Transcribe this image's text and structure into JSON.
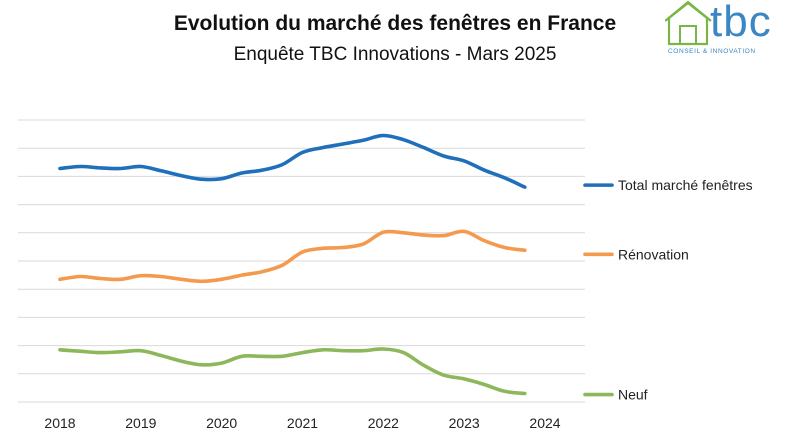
{
  "colors": {
    "total": "#1f6fba",
    "renovation": "#f39a4e",
    "neuf": "#8cb75a",
    "grid": "#d9d9d9",
    "logo": "#3a87c4",
    "logo_house": "#7ab547"
  },
  "logo": {
    "text": "tbc",
    "tagline": "CONSEIL & INNOVATION"
  },
  "chart_data": {
    "type": "line",
    "title": "Evolution du marché des fenêtres en France",
    "subtitle": "Enquête TBC Innovations - Mars 2025",
    "x": [
      2018,
      2019,
      2020,
      2021,
      2022,
      2023,
      2024
    ],
    "tick_labels": [
      "2018",
      "2019",
      "2020",
      "2021",
      "2022",
      "2023",
      "2024"
    ],
    "xlabel": "",
    "ylabel": "",
    "ylim": [
      0,
      10
    ],
    "grid": true,
    "y_axis_labels": false,
    "legend": "right",
    "series": [
      {
        "name": "Total  marché fenêtres",
        "color_key": "total",
        "points": [
          [
            2018.0,
            8.28
          ],
          [
            2018.25,
            8.35
          ],
          [
            2018.5,
            8.3
          ],
          [
            2018.75,
            8.28
          ],
          [
            2019.0,
            8.35
          ],
          [
            2019.25,
            8.2
          ],
          [
            2019.5,
            8.03
          ],
          [
            2019.75,
            7.9
          ],
          [
            2020.0,
            7.92
          ],
          [
            2020.25,
            8.12
          ],
          [
            2020.5,
            8.22
          ],
          [
            2020.75,
            8.42
          ],
          [
            2021.0,
            8.85
          ],
          [
            2021.25,
            9.02
          ],
          [
            2021.5,
            9.15
          ],
          [
            2021.75,
            9.28
          ],
          [
            2022.0,
            9.45
          ],
          [
            2022.25,
            9.3
          ],
          [
            2022.5,
            9.02
          ],
          [
            2022.75,
            8.72
          ],
          [
            2023.0,
            8.55
          ],
          [
            2023.25,
            8.22
          ],
          [
            2023.5,
            7.95
          ],
          [
            2023.75,
            7.62
          ]
        ]
      },
      {
        "name": "Rénovation",
        "color_key": "renovation",
        "points": [
          [
            2018.0,
            4.35
          ],
          [
            2018.25,
            4.45
          ],
          [
            2018.5,
            4.38
          ],
          [
            2018.75,
            4.35
          ],
          [
            2019.0,
            4.48
          ],
          [
            2019.25,
            4.45
          ],
          [
            2019.5,
            4.35
          ],
          [
            2019.75,
            4.28
          ],
          [
            2020.0,
            4.35
          ],
          [
            2020.25,
            4.5
          ],
          [
            2020.5,
            4.62
          ],
          [
            2020.75,
            4.85
          ],
          [
            2021.0,
            5.32
          ],
          [
            2021.25,
            5.45
          ],
          [
            2021.5,
            5.48
          ],
          [
            2021.75,
            5.6
          ],
          [
            2022.0,
            6.02
          ],
          [
            2022.25,
            6.0
          ],
          [
            2022.5,
            5.92
          ],
          [
            2022.75,
            5.9
          ],
          [
            2023.0,
            6.05
          ],
          [
            2023.25,
            5.72
          ],
          [
            2023.5,
            5.48
          ],
          [
            2023.75,
            5.38
          ]
        ]
      },
      {
        "name": "Neuf",
        "color_key": "neuf",
        "points": [
          [
            2018.0,
            1.85
          ],
          [
            2018.25,
            1.8
          ],
          [
            2018.5,
            1.75
          ],
          [
            2018.75,
            1.78
          ],
          [
            2019.0,
            1.82
          ],
          [
            2019.25,
            1.65
          ],
          [
            2019.5,
            1.45
          ],
          [
            2019.75,
            1.32
          ],
          [
            2020.0,
            1.38
          ],
          [
            2020.25,
            1.62
          ],
          [
            2020.5,
            1.62
          ],
          [
            2020.75,
            1.62
          ],
          [
            2021.0,
            1.75
          ],
          [
            2021.25,
            1.85
          ],
          [
            2021.5,
            1.82
          ],
          [
            2021.75,
            1.82
          ],
          [
            2022.0,
            1.88
          ],
          [
            2022.25,
            1.75
          ],
          [
            2022.5,
            1.3
          ],
          [
            2022.75,
            0.95
          ],
          [
            2023.0,
            0.82
          ],
          [
            2023.25,
            0.62
          ],
          [
            2023.5,
            0.38
          ],
          [
            2023.75,
            0.3
          ]
        ]
      }
    ]
  }
}
